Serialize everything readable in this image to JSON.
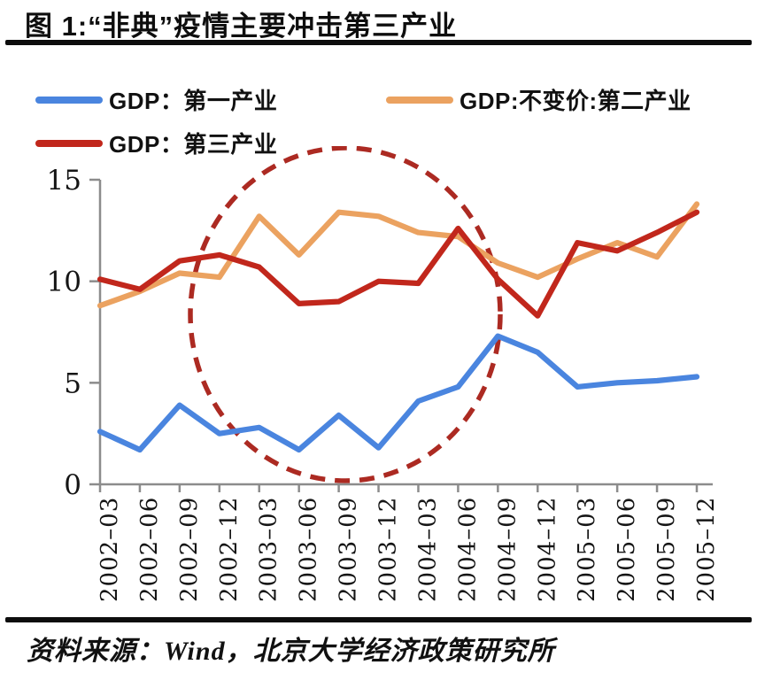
{
  "title": "图 1:“非典”疫情主要冲击第三产业",
  "legend": [
    {
      "label": "GDP：第一产业",
      "color": "#4A85DF"
    },
    {
      "label": "GDP:不变价:第二产业",
      "color": "#EBA260"
    },
    {
      "label": "GDP：第三产业",
      "color": "#C1271C"
    }
  ],
  "source": "资料来源：Wind，北京大学经济政策研究所",
  "chart_data": {
    "type": "line",
    "categories": [
      "2002-03",
      "2002-06",
      "2002-09",
      "2002-12",
      "2003-03",
      "2003-06",
      "2003-09",
      "2003-12",
      "2004-03",
      "2004-06",
      "2004-09",
      "2004-12",
      "2005-03",
      "2005-06",
      "2005-09",
      "2005-12"
    ],
    "series": [
      {
        "name": "GDP：第一产业",
        "color": "#4A85DF",
        "values": [
          2.6,
          1.7,
          3.9,
          2.5,
          2.8,
          1.7,
          3.4,
          1.8,
          4.1,
          4.8,
          7.3,
          6.5,
          4.8,
          5.0,
          5.1,
          5.3
        ]
      },
      {
        "name": "GDP:不变价:第二产业",
        "color": "#EBA260",
        "values": [
          8.8,
          9.5,
          10.4,
          10.2,
          13.2,
          11.3,
          13.4,
          13.2,
          12.4,
          12.2,
          10.9,
          10.2,
          11.1,
          11.9,
          11.2,
          13.8
        ]
      },
      {
        "name": "GDP：第三产业",
        "color": "#C1271C",
        "values": [
          10.1,
          9.6,
          11.0,
          11.3,
          10.7,
          8.9,
          9.0,
          10.0,
          9.9,
          12.6,
          10.1,
          8.3,
          11.9,
          11.5,
          12.4,
          13.4
        ]
      }
    ],
    "title": "图 1:“非典”疫情主要冲击第三产业",
    "xlabel": "",
    "ylabel": "",
    "ylim": [
      0,
      15
    ],
    "yticks": [
      0,
      5,
      10,
      15
    ],
    "grid": false,
    "legend_position": "top-left",
    "axis_color": "#8C8C8C",
    "annotation": {
      "shape": "dashed-ellipse",
      "color": "#AC2A22",
      "note": "highlights the 2003 SARS period dip in tertiary industry"
    }
  }
}
